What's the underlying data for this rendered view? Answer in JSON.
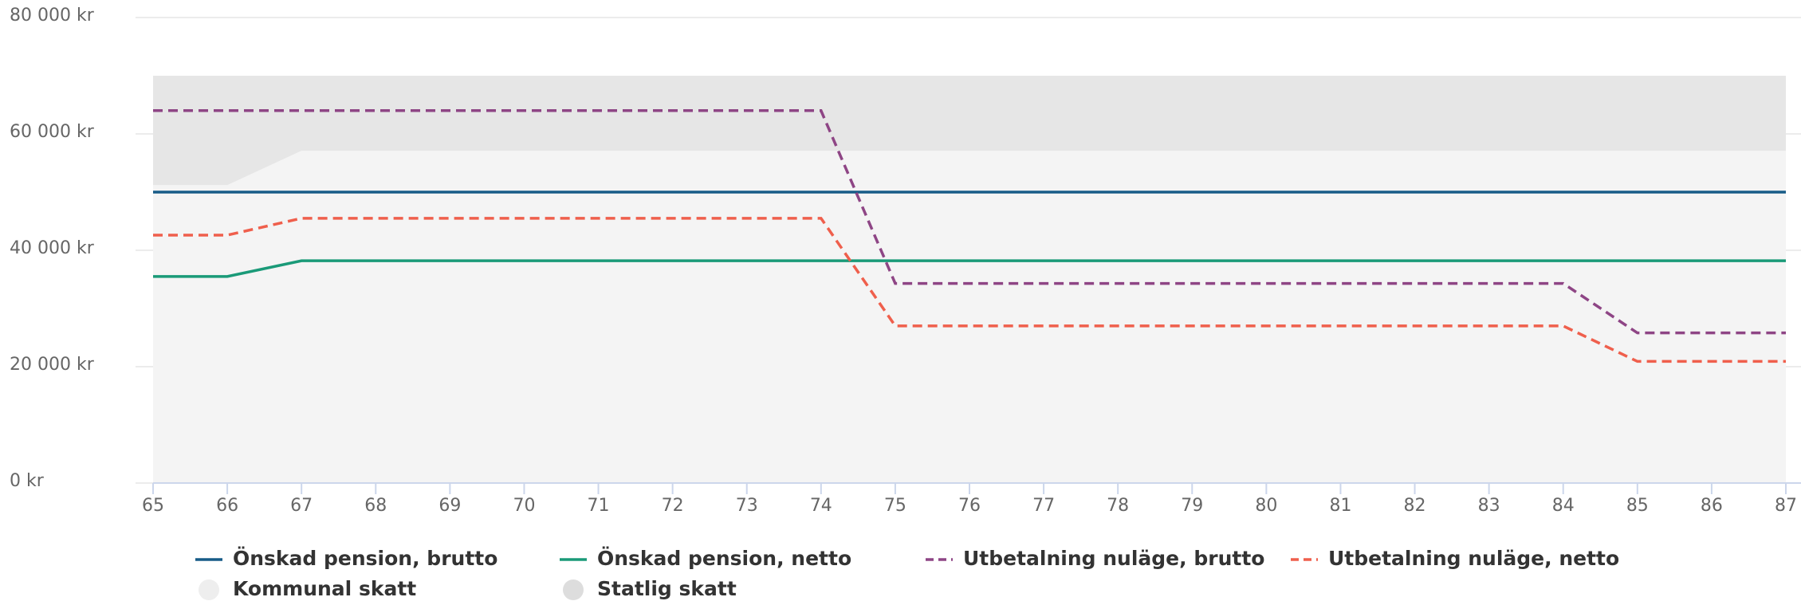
{
  "chart_data": {
    "type": "line",
    "x": [
      65,
      66,
      67,
      68,
      69,
      70,
      71,
      72,
      73,
      74,
      75,
      76,
      77,
      78,
      79,
      80,
      81,
      82,
      83,
      84,
      85,
      86,
      87
    ],
    "xlim": [
      65,
      87
    ],
    "xticks": [
      65,
      66,
      67,
      68,
      69,
      70,
      71,
      72,
      73,
      74,
      75,
      76,
      77,
      78,
      79,
      80,
      81,
      82,
      83,
      84,
      85,
      86,
      87
    ],
    "ylim": [
      0,
      80000
    ],
    "yticks": [
      {
        "value": 0,
        "label": "0 kr"
      },
      {
        "value": 20000,
        "label": "20 000 kr"
      },
      {
        "value": 40000,
        "label": "40 000 kr"
      },
      {
        "value": 60000,
        "label": "60 000 kr"
      },
      {
        "value": 80000,
        "label": "80 000 kr"
      }
    ],
    "grid": true,
    "legend": "bottom",
    "series": [
      {
        "name": "Önskad pension, brutto",
        "type": "line",
        "color": "#175b87",
        "dashed": false,
        "values": [
          50000,
          50000,
          50000,
          50000,
          50000,
          50000,
          50000,
          50000,
          50000,
          50000,
          50000,
          50000,
          50000,
          50000,
          50000,
          50000,
          50000,
          50000,
          50000,
          50000,
          50000,
          50000,
          50000
        ]
      },
      {
        "name": "Önskad pension, netto",
        "type": "line",
        "color": "#1a9a78",
        "dashed": false,
        "values": [
          35500,
          35500,
          38200,
          38200,
          38200,
          38200,
          38200,
          38200,
          38200,
          38200,
          38200,
          38200,
          38200,
          38200,
          38200,
          38200,
          38200,
          38200,
          38200,
          38200,
          38200,
          38200,
          38200
        ]
      },
      {
        "name": "Utbetalning nuläge, brutto",
        "type": "line",
        "color": "#8e4585",
        "dashed": true,
        "values": [
          64000,
          64000,
          64000,
          64000,
          64000,
          64000,
          64000,
          64000,
          64000,
          64000,
          34300,
          34300,
          34300,
          34300,
          34300,
          34300,
          34300,
          34300,
          34300,
          34300,
          25800,
          25800,
          25800
        ]
      },
      {
        "name": "Utbetalning nuläge, netto",
        "type": "line",
        "color": "#ef5f4c",
        "dashed": true,
        "values": [
          42600,
          42600,
          45500,
          45500,
          45500,
          45500,
          45500,
          45500,
          45500,
          45500,
          27000,
          27000,
          27000,
          27000,
          27000,
          27000,
          27000,
          27000,
          27000,
          27000,
          20900,
          20900,
          20900
        ]
      },
      {
        "name": "Kommunal skatt",
        "type": "area",
        "color": "#f4f4f4",
        "values": [
          51200,
          51200,
          57100,
          57100,
          57100,
          57100,
          57100,
          57100,
          57100,
          57100,
          57100,
          57100,
          57100,
          57100,
          57100,
          57100,
          57100,
          57100,
          57100,
          57100,
          57100,
          57100,
          57100
        ]
      },
      {
        "name": "Statlig skatt",
        "type": "area",
        "color": "#e6e6e6",
        "values": [
          18800,
          18800,
          12900,
          12900,
          12900,
          12900,
          12900,
          12900,
          12900,
          12900,
          12900,
          12900,
          12900,
          12900,
          12900,
          12900,
          12900,
          12900,
          12900,
          12900,
          12900,
          12900,
          12900
        ]
      }
    ]
  }
}
